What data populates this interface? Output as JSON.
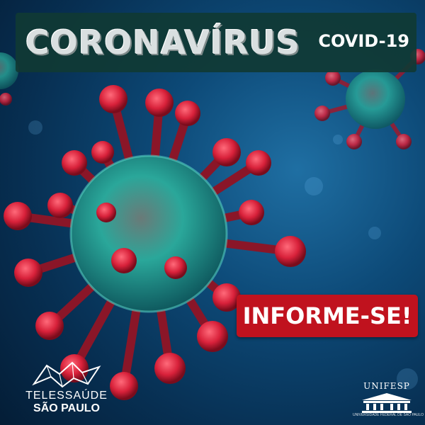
{
  "header": {
    "title": "CORONAVÍRUS",
    "subtitle": "COVID-19"
  },
  "cta": {
    "label": "INFORME-SE!"
  },
  "logo_left": {
    "line1": "TELESSAÚDE",
    "line2": "SÃO PAULO"
  },
  "logo_right": {
    "name": "UNIFESP",
    "tagline": "UNIVERSIDADE FEDERAL DE SÃO PAULO"
  },
  "colors": {
    "title_bar": "#103a34",
    "cta": "#c0121e",
    "background": "#0d4a78",
    "virus_spikes": "#d8213a",
    "virus_core": "#2aa79a"
  }
}
